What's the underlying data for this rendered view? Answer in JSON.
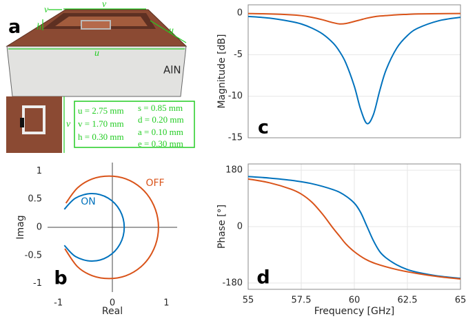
{
  "figure_a": {
    "label": "a",
    "material": "AlN",
    "dimensions": [
      "v",
      "v",
      "h",
      "u",
      "u",
      "v"
    ],
    "parameters": [
      "u = 2.75 mm",
      "v = 1.70 mm",
      "h = 0.30 mm",
      "s = 0.85 mm",
      "d = 0.20 mm",
      "a = 0.10 mm",
      "e = 0.30 mm"
    ]
  },
  "chart_data": [
    {
      "type": "line",
      "panel": "b",
      "xlabel": "Real",
      "ylabel": "Imag",
      "frame": false,
      "zero_lines": true,
      "xlim": [
        -1.2,
        1.2
      ],
      "ylim": [
        -1.15,
        1.15
      ],
      "xticks": [
        -1,
        0,
        1
      ],
      "yticks": [
        -1,
        -0.5,
        0,
        0.5,
        1
      ],
      "series": [
        {
          "name": "ON",
          "color": "#0072bd",
          "x": [
            -0.89,
            -0.68,
            -0.38,
            -0.08,
            0.14,
            0.22,
            0.14,
            -0.08,
            -0.38,
            -0.68,
            -0.89
          ],
          "values": [
            0.32,
            0.52,
            0.6,
            0.52,
            0.3,
            0,
            -0.3,
            -0.52,
            -0.6,
            -0.52,
            -0.32
          ]
        },
        {
          "name": "OFF",
          "color": "#d95319",
          "x": [
            -0.86,
            -0.645,
            -0.37,
            -0.06,
            0.25,
            0.53,
            0.73,
            0.84,
            0.84,
            0.73,
            0.53,
            0.25,
            -0.06,
            -0.37,
            -0.645,
            -0.88
          ],
          "values": [
            0.43,
            0.7,
            0.86,
            0.91,
            0.86,
            0.7,
            0.46,
            0.16,
            -0.16,
            -0.46,
            -0.7,
            -0.86,
            -0.91,
            -0.86,
            -0.7,
            -0.38
          ]
        }
      ]
    },
    {
      "type": "line",
      "panel": "c",
      "ylabel": "Magnitude [dB]",
      "frame": true,
      "grid": true,
      "xlim": [
        55,
        65
      ],
      "ylim": [
        -15,
        1
      ],
      "yticks": [
        -15,
        -10,
        -5,
        0
      ],
      "series": [
        {
          "color": "#0072bd",
          "x": [
            55,
            56,
            57,
            57.5,
            58,
            58.5,
            59,
            59.3,
            59.6,
            60,
            60.3,
            60.6,
            60.9,
            61.2,
            61.5,
            62,
            62.5,
            63,
            64,
            65
          ],
          "values": [
            -0.4,
            -0.6,
            -1.0,
            -1.3,
            -1.8,
            -2.5,
            -3.6,
            -4.6,
            -6.0,
            -8.8,
            -11.6,
            -13.3,
            -12.2,
            -9.3,
            -6.8,
            -4.2,
            -2.7,
            -1.8,
            -0.9,
            -0.5
          ]
        },
        {
          "color": "#d95319",
          "x": [
            55,
            56,
            57,
            57.5,
            58,
            58.5,
            59,
            59.3,
            59.6,
            60,
            60.3,
            60.6,
            60.9,
            61.2,
            61.5,
            62,
            62.5,
            63,
            64,
            65
          ],
          "values": [
            -0.05,
            -0.1,
            -0.2,
            -0.3,
            -0.5,
            -0.8,
            -1.15,
            -1.3,
            -1.25,
            -1.0,
            -0.8,
            -0.6,
            -0.45,
            -0.35,
            -0.3,
            -0.2,
            -0.15,
            -0.1,
            -0.07,
            -0.05
          ]
        }
      ]
    },
    {
      "type": "line",
      "panel": "d",
      "xlabel": "Frequency [GHz]",
      "ylabel": "Phase [°]",
      "frame": true,
      "grid": true,
      "xlim": [
        55,
        65
      ],
      "ylim": [
        -200,
        200
      ],
      "xticks": [
        55,
        57.5,
        60,
        62.5,
        65
      ],
      "yticks": [
        -180,
        0,
        180
      ],
      "series": [
        {
          "color": "#0072bd",
          "x": [
            55,
            56,
            57,
            58,
            59,
            59.5,
            60,
            60.3,
            60.6,
            60.9,
            61.2,
            61.5,
            62,
            62.5,
            63,
            64,
            65
          ],
          "values": [
            160,
            155,
            148,
            137,
            118,
            102,
            75,
            45,
            0,
            -45,
            -80,
            -100,
            -122,
            -137,
            -146,
            -158,
            -165
          ]
        },
        {
          "color": "#d95319",
          "x": [
            55,
            56,
            57,
            57.5,
            58,
            58.5,
            59,
            59.3,
            59.6,
            60,
            60.5,
            61,
            62,
            63,
            64,
            65
          ],
          "values": [
            152,
            140,
            120,
            104,
            78,
            40,
            -5,
            -30,
            -55,
            -80,
            -103,
            -118,
            -137,
            -150,
            -160,
            -167
          ]
        }
      ]
    }
  ]
}
